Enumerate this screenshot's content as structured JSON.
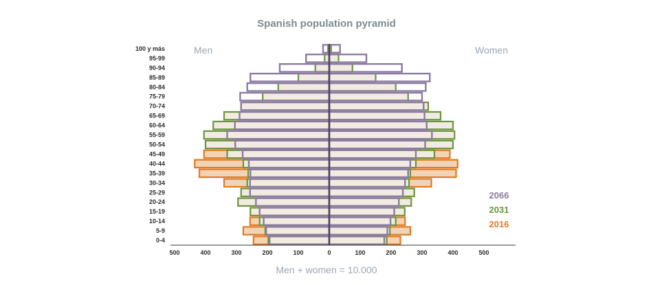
{
  "chart_data": {
    "type": "bar",
    "subtype": "population-pyramid",
    "title": "Spanish population pyramid",
    "left_label": "Men",
    "right_label": "Women",
    "xlabel": "Men + women = 10.000",
    "xlim": [
      -500,
      500
    ],
    "x_ticks": [
      "500",
      "400",
      "300",
      "200",
      "100",
      "0",
      "100",
      "200",
      "300",
      "400",
      "500"
    ],
    "grid": false,
    "legend_position": "right",
    "categories": [
      "0-4",
      "5-9",
      "10-14",
      "15-19",
      "20-24",
      "25-29",
      "30-34",
      "35-39",
      "40-44",
      "45-49",
      "50-54",
      "55-59",
      "60-64",
      "65-69",
      "70-74",
      "75-79",
      "80-84",
      "85-89",
      "90-94",
      "95-99",
      "100 y más"
    ],
    "series": [
      {
        "name": "2066",
        "color": "#8b7ba1",
        "men": [
          193,
          204,
          212,
          225,
          237,
          256,
          256,
          255,
          260,
          280,
          304,
          330,
          305,
          290,
          285,
          288,
          265,
          255,
          160,
          75,
          20
        ],
        "women": [
          178,
          188,
          198,
          210,
          225,
          238,
          245,
          255,
          262,
          280,
          310,
          332,
          315,
          308,
          305,
          300,
          312,
          325,
          235,
          120,
          35
        ]
      },
      {
        "name": "2031",
        "color": "#6b9440",
        "men": [
          197,
          207,
          225,
          255,
          295,
          285,
          265,
          262,
          278,
          330,
          400,
          405,
          375,
          340,
          285,
          215,
          165,
          100,
          45,
          15,
          4
        ],
        "women": [
          186,
          196,
          215,
          244,
          265,
          275,
          258,
          262,
          280,
          340,
          400,
          405,
          400,
          360,
          320,
          255,
          215,
          150,
          75,
          30,
          6
        ],
        "fill": "#f2ebe1"
      },
      {
        "name": "2016",
        "color": "#e07b22",
        "men": [
          245,
          278,
          256,
          237,
          235,
          265,
          340,
          420,
          435,
          405,
          375,
          335,
          275,
          240,
          200,
          150,
          130,
          72,
          35,
          10,
          3
        ],
        "women": [
          230,
          262,
          245,
          225,
          225,
          262,
          330,
          410,
          415,
          390,
          350,
          320,
          270,
          255,
          225,
          185,
          175,
          125,
          60,
          22,
          5
        ],
        "fill": "#f3d3b6"
      }
    ]
  }
}
